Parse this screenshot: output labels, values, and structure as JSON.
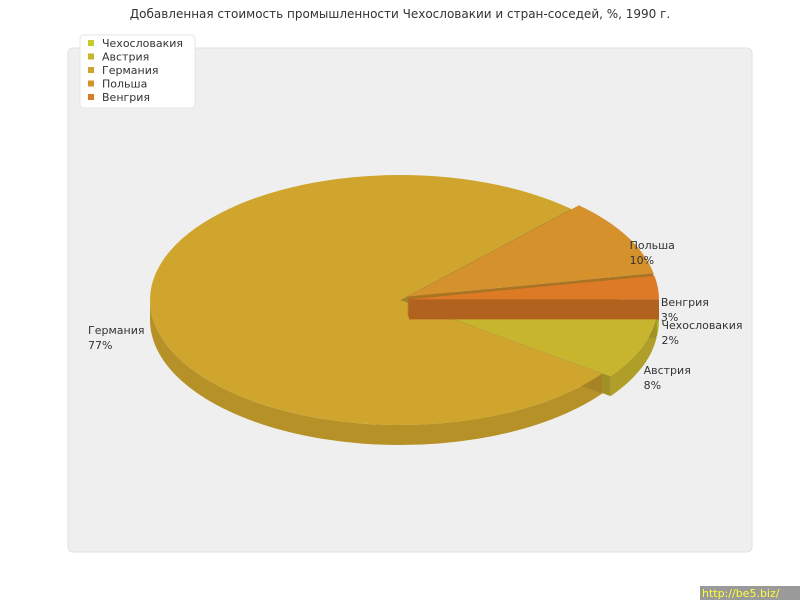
{
  "chart_data": {
    "type": "pie3d",
    "title": "Добавленная стоимость промышленности Чехословакии и стран-соседей, %, 1990 г.",
    "categories": [
      "Чехословакия",
      "Австрия",
      "Германия",
      "Польша",
      "Венгрия"
    ],
    "values": [
      2,
      8,
      77,
      10,
      3
    ],
    "value_labels": [
      "2%",
      "8%",
      "77%",
      "10%",
      "3%"
    ],
    "colors": [
      "#c6cc2c",
      "#c7b52e",
      "#cfa52e",
      "#d4912c",
      "#dc7a26"
    ],
    "legend": "top-left"
  },
  "watermark": "http://be5.biz/"
}
